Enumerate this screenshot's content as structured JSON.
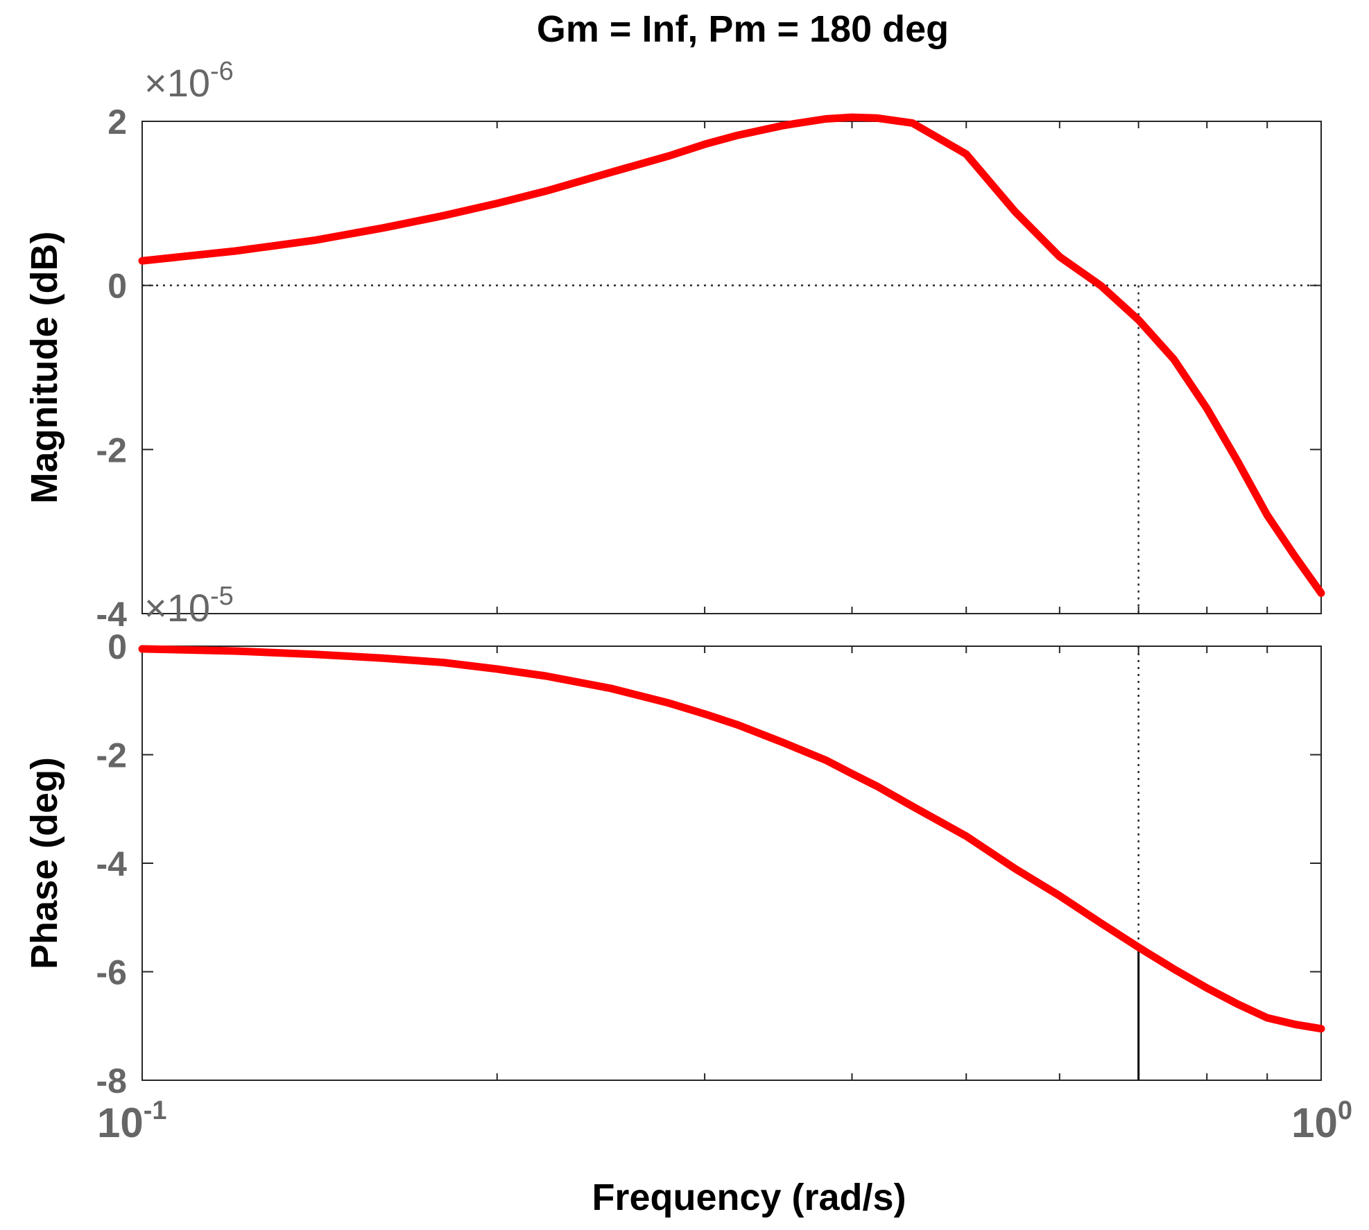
{
  "chart_data": {
    "type": "line",
    "title": "Gm = Inf,  Pm = 180 deg",
    "xlabel": "Frequency  (rad/s)",
    "xscale": "log",
    "xlim": [
      0.1,
      1
    ],
    "x_ticks": [
      {
        "value": 0.1,
        "base": "10",
        "exp": "-1"
      },
      {
        "value": 1,
        "base": "10",
        "exp": "0"
      }
    ],
    "grid": false,
    "line_color": "#ff0000",
    "marker_color": "#000000",
    "crossover_frequency": 0.7,
    "subplots": [
      {
        "id": "magnitude",
        "ylabel": "Magnitude (dB)",
        "ylim": [
          -4,
          2
        ],
        "yticks": [
          2,
          0,
          -2,
          -4
        ],
        "ytick_labels": [
          "2",
          "0",
          "-2",
          "-4"
        ],
        "y_multiplier": {
          "base": "×10",
          "exp": "-6"
        },
        "reference_line": 0,
        "x": [
          0.1,
          0.12,
          0.14,
          0.16,
          0.18,
          0.2,
          0.22,
          0.25,
          0.28,
          0.3,
          0.32,
          0.35,
          0.38,
          0.4,
          0.42,
          0.45,
          0.5,
          0.55,
          0.6,
          0.65,
          0.7,
          0.75,
          0.8,
          0.85,
          0.9,
          0.95,
          1.0
        ],
        "y": [
          0.3,
          0.42,
          0.55,
          0.7,
          0.85,
          1.0,
          1.15,
          1.38,
          1.58,
          1.72,
          1.83,
          1.95,
          2.03,
          2.05,
          2.04,
          1.98,
          1.6,
          0.9,
          0.35,
          0.0,
          -0.42,
          -0.9,
          -1.5,
          -2.15,
          -2.8,
          -3.3,
          -3.75
        ]
      },
      {
        "id": "phase",
        "ylabel": "Phase (deg)",
        "ylim": [
          -8,
          0
        ],
        "yticks": [
          0,
          -2,
          -4,
          -6,
          -8
        ],
        "ytick_labels": [
          "0",
          "-2",
          "-4",
          "-6",
          "-8"
        ],
        "y_multiplier": {
          "base": "×10",
          "exp": "-5"
        },
        "x": [
          0.1,
          0.12,
          0.14,
          0.16,
          0.18,
          0.2,
          0.22,
          0.25,
          0.28,
          0.3,
          0.32,
          0.35,
          0.38,
          0.4,
          0.42,
          0.45,
          0.5,
          0.55,
          0.6,
          0.65,
          0.7,
          0.75,
          0.8,
          0.85,
          0.9,
          0.95,
          1.0
        ],
        "y": [
          -0.05,
          -0.09,
          -0.15,
          -0.22,
          -0.3,
          -0.42,
          -0.55,
          -0.78,
          -1.05,
          -1.25,
          -1.45,
          -1.78,
          -2.1,
          -2.35,
          -2.58,
          -2.95,
          -3.5,
          -4.1,
          -4.6,
          -5.1,
          -5.55,
          -5.95,
          -6.3,
          -6.6,
          -6.85,
          -6.97,
          -7.05
        ]
      }
    ]
  }
}
